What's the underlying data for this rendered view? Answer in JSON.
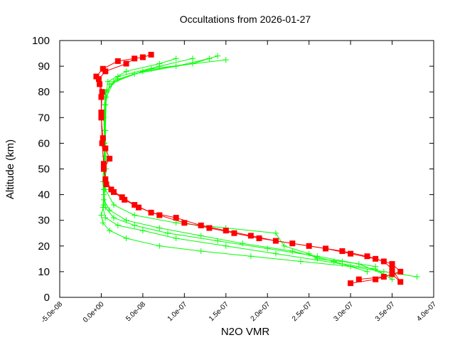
{
  "chart_data": {
    "type": "line",
    "title": "Occultations from 2026-01-27",
    "xlabel": "N2O VMR",
    "ylabel": "Altitude (km)",
    "xlim": [
      -5e-08,
      4e-07
    ],
    "ylim": [
      0,
      100
    ],
    "xticks": [
      "-5.0e-08",
      "0.0e+00",
      "5.0e-08",
      "1.0e-07",
      "1.5e-07",
      "2.0e-07",
      "2.5e-07",
      "3.0e-07",
      "3.5e-07",
      "4.0e-07"
    ],
    "xtick_values": [
      -5e-08,
      0,
      5e-08,
      1e-07,
      1.5e-07,
      2e-07,
      2.5e-07,
      3e-07,
      3.5e-07,
      4e-07
    ],
    "yticks": [
      "0",
      "10",
      "20",
      "30",
      "40",
      "50",
      "60",
      "70",
      "80",
      "90",
      "100"
    ],
    "ytick_values": [
      0,
      10,
      20,
      30,
      40,
      50,
      60,
      70,
      80,
      90,
      100
    ],
    "grid": false,
    "legend": "none",
    "series": [
      {
        "color": "#00ff00",
        "marker": "plus",
        "points": [
          [
            3.8e-07,
            8
          ],
          [
            3.4e-07,
            10
          ],
          [
            3e-07,
            12
          ],
          [
            2.4e-07,
            14
          ],
          [
            1.8e-07,
            16
          ],
          [
            1.2e-07,
            18
          ],
          [
            7e-08,
            20
          ],
          [
            3e-08,
            23
          ],
          [
            1e-08,
            26
          ],
          [
            2e-09,
            29
          ],
          [
            0,
            32
          ],
          [
            3e-09,
            36
          ],
          [
            4e-09,
            42
          ],
          [
            5e-09,
            50
          ],
          [
            4e-09,
            60
          ],
          [
            3e-09,
            70
          ],
          [
            5e-09,
            80
          ],
          [
            2e-08,
            85
          ],
          [
            6e-08,
            89
          ],
          [
            1.5e-07,
            92.5
          ]
        ]
      },
      {
        "color": "#00ff00",
        "marker": "plus",
        "points": [
          [
            3.5e-07,
            7
          ],
          [
            3.3e-07,
            11
          ],
          [
            2.9e-07,
            13
          ],
          [
            2.1e-07,
            17
          ],
          [
            1.5e-07,
            20
          ],
          [
            9e-08,
            23
          ],
          [
            5e-08,
            26
          ],
          [
            2e-08,
            28
          ],
          [
            5e-09,
            31
          ],
          [
            2e-09,
            35
          ],
          [
            3e-09,
            40
          ],
          [
            6e-09,
            50
          ],
          [
            5e-09,
            65
          ],
          [
            6e-09,
            78
          ],
          [
            1.5e-08,
            84
          ],
          [
            5e-08,
            88
          ],
          [
            1.1e-07,
            91
          ],
          [
            1.4e-07,
            94
          ]
        ]
      },
      {
        "color": "#00ff00",
        "marker": "plus",
        "points": [
          [
            3.4e-07,
            9
          ],
          [
            3.1e-07,
            13
          ],
          [
            2.6e-07,
            16
          ],
          [
            2e-07,
            19
          ],
          [
            1.4e-07,
            22
          ],
          [
            8e-08,
            25
          ],
          [
            4e-08,
            28
          ],
          [
            1.5e-08,
            31
          ],
          [
            5e-09,
            35
          ],
          [
            3e-09,
            42
          ],
          [
            4e-09,
            55
          ],
          [
            5e-09,
            75
          ],
          [
            1e-08,
            83
          ],
          [
            4e-08,
            87
          ],
          [
            9e-08,
            90
          ],
          [
            1.3e-07,
            93
          ]
        ]
      },
      {
        "color": "#00ff00",
        "marker": "plus",
        "points": [
          [
            3.3e-07,
            12
          ],
          [
            2.9e-07,
            14
          ],
          [
            2.6e-07,
            15
          ],
          [
            2.5e-07,
            17
          ],
          [
            2.2e-07,
            20
          ],
          [
            2.1e-07,
            25
          ],
          [
            1.5e-07,
            27
          ],
          [
            9e-08,
            29
          ],
          [
            4e-08,
            32
          ],
          [
            1.5e-08,
            36
          ],
          [
            5e-09,
            42
          ],
          [
            3e-09,
            50
          ],
          [
            4e-09,
            65
          ],
          [
            6e-09,
            80
          ],
          [
            2e-08,
            86
          ],
          [
            7e-08,
            90
          ],
          [
            1.1e-07,
            93
          ]
        ]
      },
      {
        "color": "#00ff00",
        "marker": "plus",
        "points": [
          [
            3.2e-07,
            10
          ],
          [
            2.8e-07,
            14
          ],
          [
            2.3e-07,
            18
          ],
          [
            1.7e-07,
            21
          ],
          [
            1.2e-07,
            24
          ],
          [
            7e-08,
            27
          ],
          [
            3e-08,
            30
          ],
          [
            1e-08,
            34
          ],
          [
            3e-09,
            38
          ],
          [
            2e-09,
            45
          ],
          [
            4e-09,
            60
          ],
          [
            4e-09,
            75
          ],
          [
            8e-09,
            84
          ],
          [
            3e-08,
            88
          ],
          [
            7e-08,
            91
          ],
          [
            9e-08,
            93
          ]
        ]
      },
      {
        "color": "#ff0000",
        "marker": "square",
        "points": [
          [
            3e-07,
            5.5
          ],
          [
            3.3e-07,
            7
          ],
          [
            3.5e-07,
            9
          ],
          [
            3.6e-07,
            6
          ],
          [
            3.5e-07,
            11
          ],
          [
            3.4e-07,
            14
          ],
          [
            3.2e-07,
            16
          ],
          [
            2.9e-07,
            18
          ],
          [
            2.5e-07,
            20
          ],
          [
            2.1e-07,
            22
          ],
          [
            1.8e-07,
            24
          ],
          [
            1.5e-07,
            26
          ],
          [
            1.2e-07,
            28
          ],
          [
            9e-08,
            31
          ],
          [
            6e-08,
            33
          ],
          [
            4e-08,
            36
          ],
          [
            2.5e-08,
            39
          ],
          [
            1.2e-08,
            42
          ],
          [
            5e-09,
            46
          ],
          [
            3e-09,
            50
          ],
          [
            1e-08,
            54
          ],
          [
            5e-09,
            58
          ],
          [
            2e-09,
            62
          ],
          [
            0,
            70
          ],
          [
            0,
            78
          ],
          [
            -2e-09,
            83
          ],
          [
            -6e-09,
            86
          ],
          [
            2e-09,
            89
          ],
          [
            2e-08,
            92
          ],
          [
            5e-08,
            93.5
          ],
          [
            6e-08,
            94.5
          ]
        ]
      },
      {
        "color": "#ff0000",
        "marker": "square",
        "points": [
          [
            3.1e-07,
            7
          ],
          [
            3.4e-07,
            8
          ],
          [
            3.6e-07,
            10
          ],
          [
            3.5e-07,
            13
          ],
          [
            3.3e-07,
            15
          ],
          [
            3e-07,
            17
          ],
          [
            2.7e-07,
            19
          ],
          [
            2.3e-07,
            21
          ],
          [
            1.9e-07,
            23
          ],
          [
            1.6e-07,
            25
          ],
          [
            1.3e-07,
            27
          ],
          [
            1e-07,
            29
          ],
          [
            7e-08,
            32
          ],
          [
            4.5e-08,
            35
          ],
          [
            2.8e-08,
            38
          ],
          [
            1.5e-08,
            41
          ],
          [
            6e-09,
            44
          ],
          [
            3e-09,
            52
          ],
          [
            1e-09,
            60
          ],
          [
            0,
            72
          ],
          [
            1e-09,
            80
          ],
          [
            -3e-09,
            85
          ],
          [
            5e-09,
            88
          ],
          [
            3e-08,
            91
          ],
          [
            4e-08,
            93
          ]
        ]
      }
    ]
  }
}
